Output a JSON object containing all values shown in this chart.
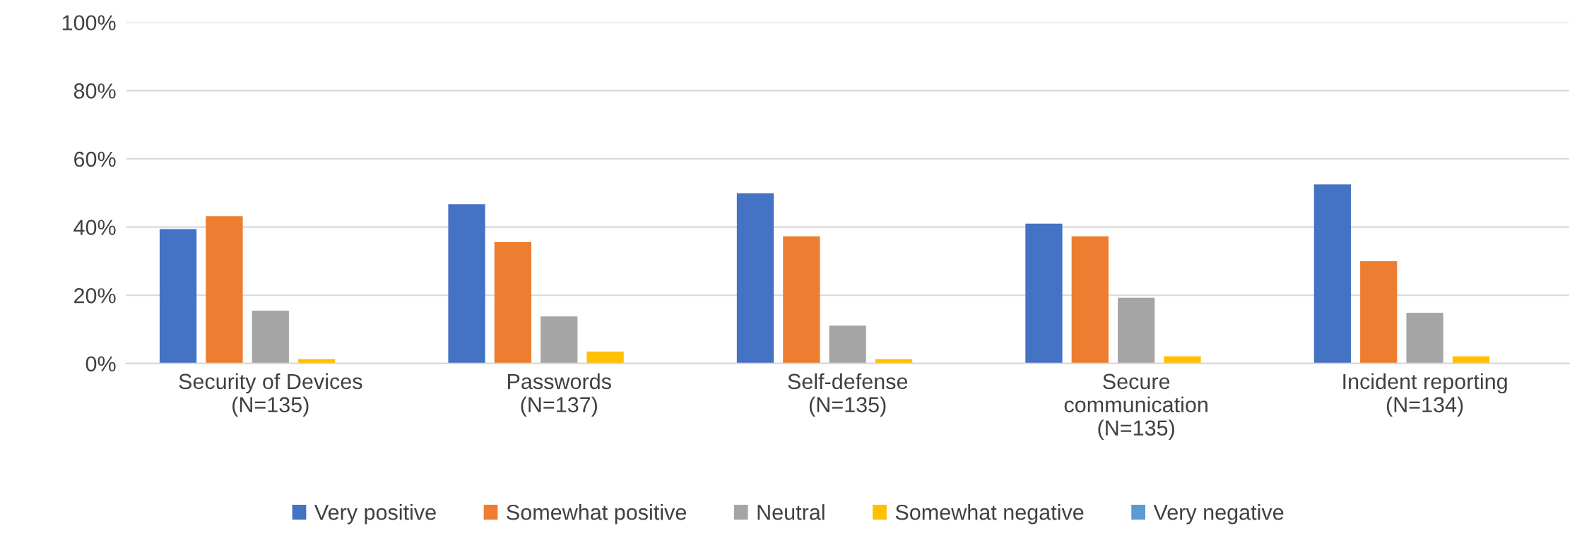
{
  "chart_data": {
    "type": "bar",
    "categories": [
      "Security of Devices\n(N=135)",
      "Passwords\n(N=137)",
      "Self-defense\n(N=135)",
      "Secure\ncommunication\n(N=135)",
      "Incident reporting\n(N=134)"
    ],
    "series": [
      {
        "name": "Very positive",
        "color": "#4472c4",
        "values": [
          39.4,
          46.7,
          49.9,
          41.0,
          52.5
        ]
      },
      {
        "name": "Somewhat positive",
        "color": "#ed7d31",
        "values": [
          43.2,
          35.6,
          37.3,
          37.3,
          30.0
        ]
      },
      {
        "name": "Neutral",
        "color": "#a5a5a5",
        "values": [
          15.5,
          13.8,
          11.1,
          19.3,
          14.9
        ]
      },
      {
        "name": "Somewhat negative",
        "color": "#ffc000",
        "values": [
          1.3,
          3.5,
          1.3,
          2.1,
          2.1
        ]
      },
      {
        "name": "Very negative",
        "color": "#5b9bd5",
        "values": [
          0,
          0,
          0,
          0,
          0
        ]
      }
    ],
    "ylim": [
      0,
      100
    ],
    "yticks": [
      {
        "value": 0,
        "label": "0%"
      },
      {
        "value": 20,
        "label": "20%"
      },
      {
        "value": 40,
        "label": "40%"
      },
      {
        "value": 60,
        "label": "60%"
      },
      {
        "value": 80,
        "label": "80%"
      },
      {
        "value": 100,
        "label": "100%"
      }
    ],
    "grid": "y",
    "legend": "bottom"
  }
}
